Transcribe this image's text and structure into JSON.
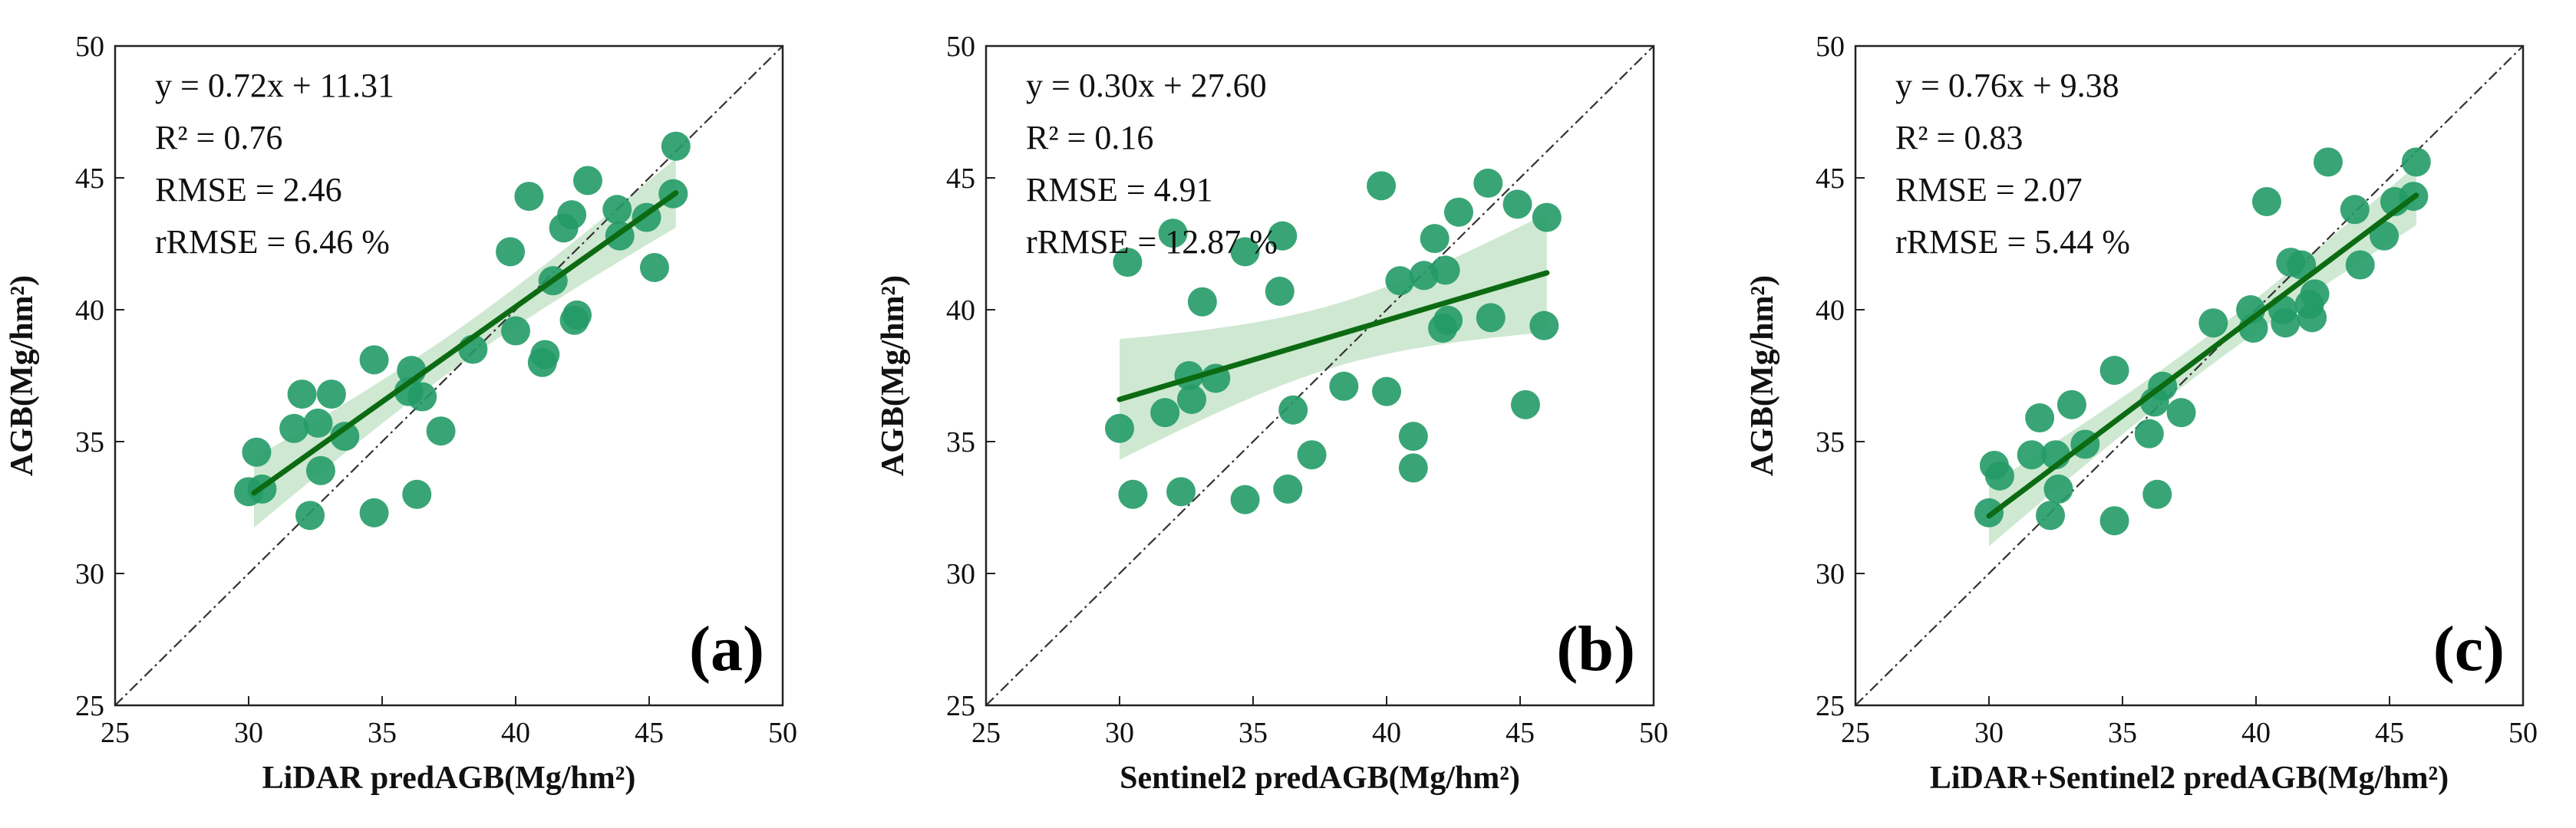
{
  "chart_data": [
    {
      "type": "scatter",
      "panel_label": "(a)",
      "xlabel": "LiDAR predAGB(Mg/hm²)",
      "ylabel": "AGB(Mg/hm²)",
      "xlim": [
        25,
        50
      ],
      "ylim": [
        25,
        50
      ],
      "xticks": [
        "25",
        "30",
        "35",
        "40",
        "45",
        "50"
      ],
      "yticks": [
        "25",
        "30",
        "35",
        "40",
        "45",
        "50"
      ],
      "stats": [
        "y = 0.72x + 11.31",
        "R² = 0.76",
        "RMSE = 2.46",
        "rRMSE = 6.46 %"
      ],
      "fit": {
        "slope": 0.72,
        "intercept": 11.31,
        "x_range": [
          30.2,
          46.0
        ]
      },
      "reference_line": "1:1",
      "points": [
        [
          30.0,
          33.1
        ],
        [
          30.3,
          34.6
        ],
        [
          30.5,
          33.2
        ],
        [
          31.7,
          35.5
        ],
        [
          32.0,
          36.8
        ],
        [
          32.3,
          32.2
        ],
        [
          32.6,
          35.7
        ],
        [
          32.7,
          33.9
        ],
        [
          33.1,
          36.8
        ],
        [
          33.6,
          35.2
        ],
        [
          34.7,
          38.1
        ],
        [
          34.7,
          32.3
        ],
        [
          36.0,
          36.9
        ],
        [
          36.1,
          37.7
        ],
        [
          36.3,
          33.0
        ],
        [
          36.5,
          36.7
        ],
        [
          37.2,
          35.4
        ],
        [
          38.4,
          38.5
        ],
        [
          39.8,
          42.2
        ],
        [
          40.0,
          39.2
        ],
        [
          40.5,
          44.3
        ],
        [
          41.0,
          38.0
        ],
        [
          41.1,
          38.3
        ],
        [
          41.4,
          41.1
        ],
        [
          41.8,
          43.1
        ],
        [
          42.1,
          43.6
        ],
        [
          42.2,
          39.6
        ],
        [
          42.3,
          39.8
        ],
        [
          42.7,
          44.9
        ],
        [
          43.8,
          43.8
        ],
        [
          43.9,
          42.8
        ],
        [
          44.9,
          43.5
        ],
        [
          45.2,
          41.6
        ],
        [
          45.9,
          44.4
        ],
        [
          46.0,
          46.2
        ]
      ]
    },
    {
      "type": "scatter",
      "panel_label": "(b)",
      "xlabel": "Sentinel2 predAGB(Mg/hm²)",
      "ylabel": "AGB(Mg/hm²)",
      "xlim": [
        25,
        50
      ],
      "ylim": [
        25,
        50
      ],
      "xticks": [
        "25",
        "30",
        "35",
        "40",
        "45",
        "50"
      ],
      "yticks": [
        "25",
        "30",
        "35",
        "40",
        "45",
        "50"
      ],
      "stats": [
        "y = 0.30x + 27.60",
        "R² = 0.16",
        "RMSE = 4.91",
        "rRMSE = 12.87 %"
      ],
      "fit": {
        "slope": 0.3,
        "intercept": 27.6,
        "x_range": [
          30.0,
          46.0
        ]
      },
      "reference_line": "1:1",
      "points": [
        [
          30.0,
          35.5
        ],
        [
          30.3,
          41.8
        ],
        [
          30.5,
          33.0
        ],
        [
          31.7,
          36.1
        ],
        [
          32.0,
          42.9
        ],
        [
          32.3,
          33.1
        ],
        [
          32.6,
          37.5
        ],
        [
          32.7,
          36.6
        ],
        [
          33.1,
          40.3
        ],
        [
          33.6,
          37.4
        ],
        [
          34.7,
          32.8
        ],
        [
          34.7,
          42.2
        ],
        [
          36.0,
          40.7
        ],
        [
          36.1,
          42.8
        ],
        [
          36.3,
          33.2
        ],
        [
          36.5,
          36.2
        ],
        [
          37.2,
          34.5
        ],
        [
          38.4,
          37.1
        ],
        [
          39.8,
          44.7
        ],
        [
          40.0,
          36.9
        ],
        [
          40.5,
          41.1
        ],
        [
          41.0,
          35.2
        ],
        [
          41.0,
          34.0
        ],
        [
          41.4,
          41.3
        ],
        [
          41.8,
          42.7
        ],
        [
          42.1,
          39.3
        ],
        [
          42.2,
          41.5
        ],
        [
          42.3,
          39.6
        ],
        [
          42.7,
          43.7
        ],
        [
          43.8,
          44.8
        ],
        [
          43.9,
          39.7
        ],
        [
          44.9,
          44.0
        ],
        [
          45.2,
          36.4
        ],
        [
          45.9,
          39.4
        ],
        [
          46.0,
          43.5
        ]
      ]
    },
    {
      "type": "scatter",
      "panel_label": "(c)",
      "xlabel": "LiDAR+Sentinel2 predAGB(Mg/hm²)",
      "ylabel": "AGB(Mg/hm²)",
      "xlim": [
        25,
        50
      ],
      "ylim": [
        25,
        50
      ],
      "xticks": [
        "25",
        "30",
        "35",
        "40",
        "45",
        "50"
      ],
      "yticks": [
        "25",
        "30",
        "35",
        "40",
        "45",
        "50"
      ],
      "stats": [
        "y = 0.76x + 9.38",
        "R² = 0.83",
        "RMSE = 2.07",
        "rRMSE = 5.44 %"
      ],
      "fit": {
        "slope": 0.76,
        "intercept": 9.38,
        "x_range": [
          30.0,
          46.0
        ]
      },
      "reference_line": "1:1",
      "points": [
        [
          30.0,
          32.3
        ],
        [
          30.2,
          34.1
        ],
        [
          30.4,
          33.7
        ],
        [
          31.6,
          34.5
        ],
        [
          31.9,
          35.9
        ],
        [
          32.3,
          32.2
        ],
        [
          32.5,
          34.5
        ],
        [
          32.6,
          33.2
        ],
        [
          33.1,
          36.4
        ],
        [
          33.6,
          34.9
        ],
        [
          34.7,
          37.7
        ],
        [
          34.7,
          32.0
        ],
        [
          36.0,
          35.3
        ],
        [
          36.2,
          36.5
        ],
        [
          36.3,
          33.0
        ],
        [
          36.5,
          37.1
        ],
        [
          37.2,
          36.1
        ],
        [
          38.4,
          39.5
        ],
        [
          39.8,
          40.0
        ],
        [
          39.9,
          39.3
        ],
        [
          40.4,
          44.1
        ],
        [
          41.0,
          40.0
        ],
        [
          41.1,
          39.5
        ],
        [
          41.3,
          41.8
        ],
        [
          41.7,
          41.7
        ],
        [
          42.0,
          40.2
        ],
        [
          42.1,
          39.7
        ],
        [
          42.2,
          40.6
        ],
        [
          42.7,
          45.6
        ],
        [
          43.7,
          43.8
        ],
        [
          43.9,
          41.7
        ],
        [
          44.8,
          42.8
        ],
        [
          45.2,
          44.1
        ],
        [
          45.9,
          44.3
        ],
        [
          46.0,
          45.6
        ]
      ]
    }
  ]
}
